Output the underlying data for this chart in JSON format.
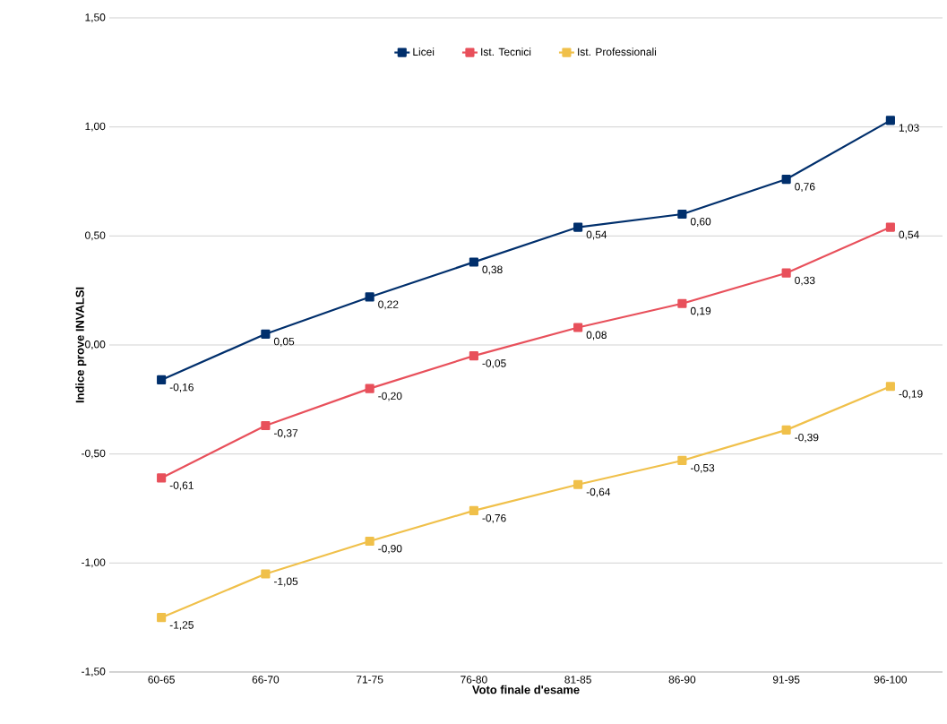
{
  "chart_data": {
    "type": "line",
    "xlabel": "Voto finale d'esame",
    "ylabel": "Indice prove INVALSI",
    "categories": [
      "60-65",
      "66-70",
      "71-75",
      "76-80",
      "81-85",
      "86-90",
      "91-95",
      "96-100"
    ],
    "series": [
      {
        "name": "Licei",
        "color": "#002f6c",
        "values": [
          -0.16,
          0.05,
          0.22,
          0.38,
          0.54,
          0.6,
          0.76,
          1.03
        ],
        "value_labels": [
          "-0,16",
          "0,05",
          "0,22",
          "0,38",
          "0,54",
          "0,60",
          "0,76",
          "1,03"
        ]
      },
      {
        "name": "Ist. Tecnici",
        "color": "#e8505b",
        "values": [
          -0.61,
          -0.37,
          -0.2,
          -0.05,
          0.08,
          0.19,
          0.33,
          0.54
        ],
        "value_labels": [
          "-0,61",
          "-0,37",
          "-0,20",
          "-0,05",
          "0,08",
          "0,19",
          "0,33",
          "0,54"
        ]
      },
      {
        "name": "Ist. Professionali",
        "color": "#f0c04a",
        "values": [
          -1.25,
          -1.05,
          -0.9,
          -0.76,
          -0.64,
          -0.53,
          -0.39,
          -0.19
        ],
        "value_labels": [
          "-1,25",
          "-1,05",
          "-0,90",
          "-0,76",
          "-0,64",
          "-0,53",
          "-0,39",
          "-0,19"
        ]
      }
    ],
    "ylim": [
      -1.5,
      1.5
    ],
    "yticks": [
      {
        "value": -1.5,
        "label": "-1,50"
      },
      {
        "value": -1.0,
        "label": "-1,00"
      },
      {
        "value": -0.5,
        "label": "-0,50"
      },
      {
        "value": 0.0,
        "label": "0,00"
      },
      {
        "value": 0.5,
        "label": "0,50"
      },
      {
        "value": 1.0,
        "label": "1,00"
      },
      {
        "value": 1.5,
        "label": "1,50"
      }
    ],
    "grid": "y",
    "legend": "top",
    "marker": "square",
    "line_style": "solid"
  }
}
